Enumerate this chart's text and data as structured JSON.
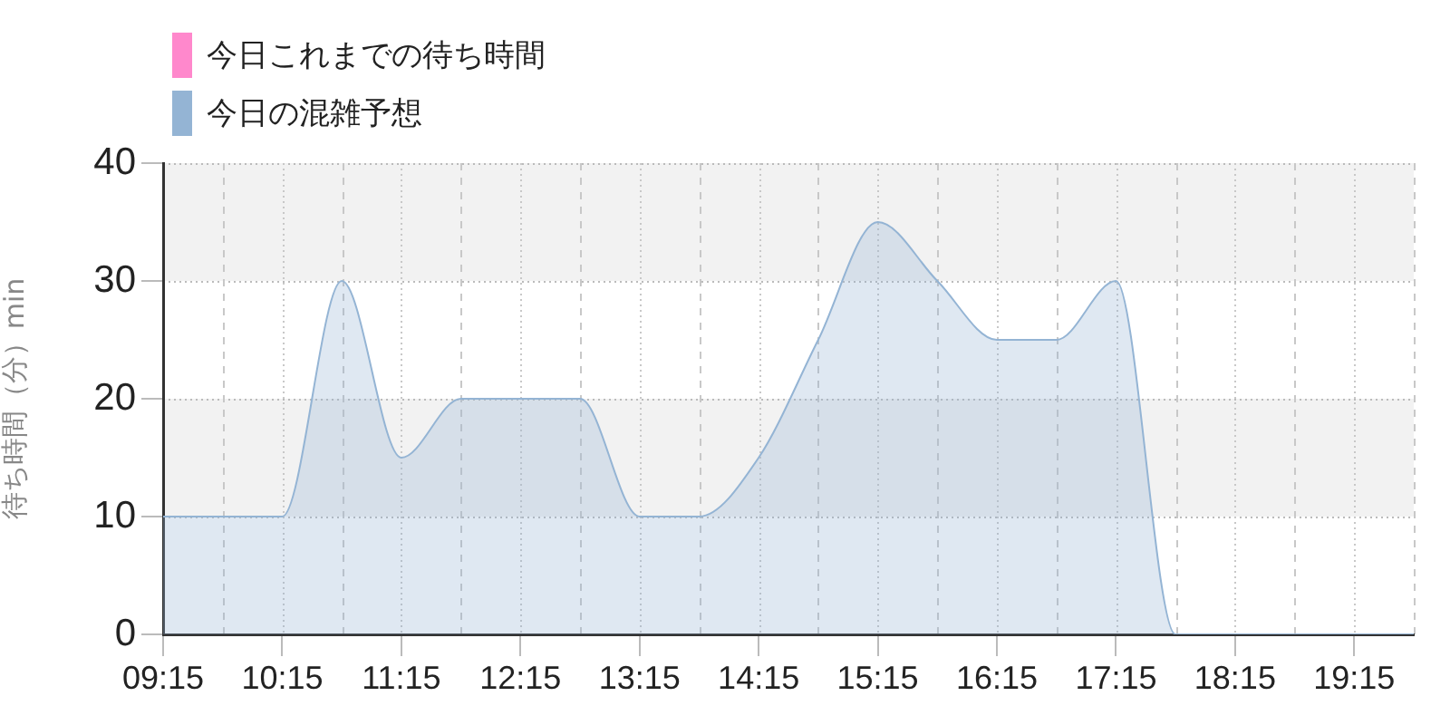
{
  "chart_data": {
    "type": "area",
    "x": [
      9.25,
      9.75,
      10.25,
      10.75,
      11.25,
      11.75,
      12.25,
      12.75,
      13.25,
      13.75,
      14.25,
      14.75,
      15.25,
      15.75,
      16.25,
      16.75,
      17.25,
      17.75,
      18.25,
      18.75,
      19.25,
      19.75
    ],
    "series": [
      {
        "name": "今日これまでの待ち時間",
        "color": "#ff88cc",
        "values": [
          null,
          null,
          null,
          null,
          null,
          null,
          null,
          null,
          null,
          null,
          null,
          null,
          null,
          null,
          null,
          null,
          null,
          null,
          null,
          null,
          null,
          null
        ]
      },
      {
        "name": "今日の混雑予想",
        "color": "#94b4d4",
        "values": [
          10,
          10,
          10,
          30,
          15,
          20,
          20,
          20,
          10,
          10,
          15,
          25,
          35,
          30,
          25,
          25,
          30,
          0,
          0,
          0,
          0,
          0
        ]
      }
    ],
    "ylabel": "待ち時間（分）min",
    "xlim": [
      9.25,
      19.75
    ],
    "xticks": [
      {
        "value": 9.25,
        "label": "09:15"
      },
      {
        "value": 9.75,
        "label": null
      },
      {
        "value": 10.25,
        "label": "10:15"
      },
      {
        "value": 10.75,
        "label": null
      },
      {
        "value": 11.25,
        "label": "11:15"
      },
      {
        "value": 11.75,
        "label": null
      },
      {
        "value": 12.25,
        "label": "12:15"
      },
      {
        "value": 12.75,
        "label": null
      },
      {
        "value": 13.25,
        "label": "13:15"
      },
      {
        "value": 13.75,
        "label": null
      },
      {
        "value": 14.25,
        "label": "14:15"
      },
      {
        "value": 14.75,
        "label": null
      },
      {
        "value": 15.25,
        "label": "15:15"
      },
      {
        "value": 15.75,
        "label": null
      },
      {
        "value": 16.25,
        "label": "16:15"
      },
      {
        "value": 16.75,
        "label": null
      },
      {
        "value": 17.25,
        "label": "17:15"
      },
      {
        "value": 17.75,
        "label": null
      },
      {
        "value": 18.25,
        "label": "18:15"
      },
      {
        "value": 18.75,
        "label": null
      },
      {
        "value": 19.25,
        "label": "19:15"
      },
      {
        "value": 19.75,
        "label": null
      }
    ],
    "ylim": [
      0,
      40
    ],
    "yticks": [
      0,
      10,
      20,
      30,
      40
    ],
    "grid": true,
    "legend": "top left"
  }
}
